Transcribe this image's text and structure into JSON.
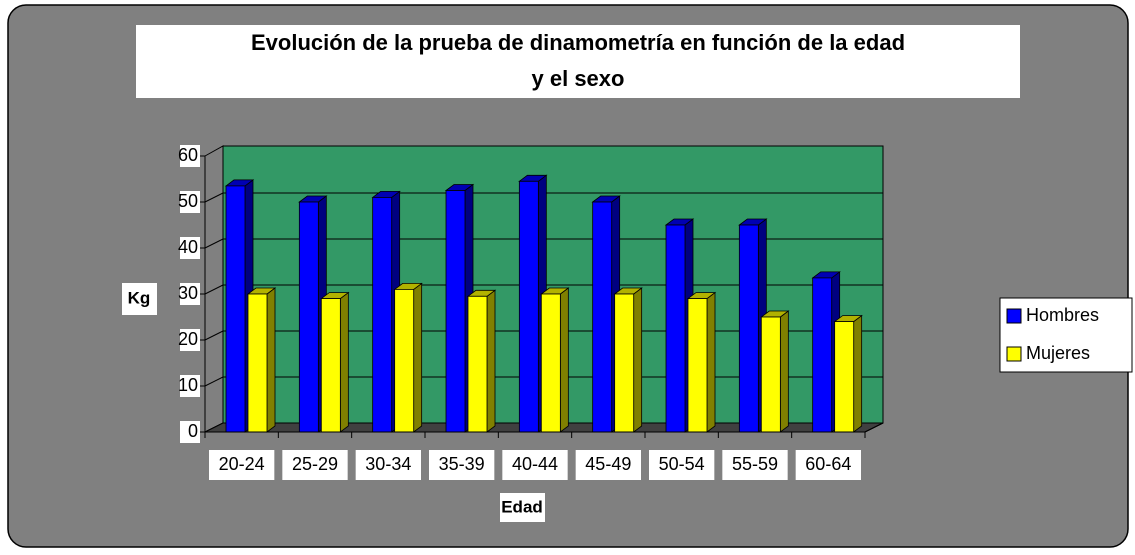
{
  "chart_data": {
    "type": "bar3d",
    "title": "Evolución de la prueba de dinamometría en función de la edad y el sexo",
    "x_label": "Edad",
    "y_label": "Kg",
    "categories": [
      "20-24",
      "25-29",
      "30-34",
      "35-39",
      "40-44",
      "45-49",
      "50-54",
      "55-59",
      "60-64"
    ],
    "series": [
      {
        "name": "Hombres",
        "color": "#0000ff",
        "values": [
          53.5,
          50,
          51,
          52.5,
          54.5,
          50,
          45,
          45,
          33.5
        ]
      },
      {
        "name": "Mujeres",
        "color": "#ffff00",
        "values": [
          30,
          29,
          31,
          29.5,
          30,
          30,
          29,
          25,
          24
        ]
      }
    ],
    "ylim": [
      0,
      60
    ],
    "yticks": [
      0,
      10,
      20,
      30,
      40,
      50,
      60
    ],
    "grid": true,
    "legend": "right"
  }
}
